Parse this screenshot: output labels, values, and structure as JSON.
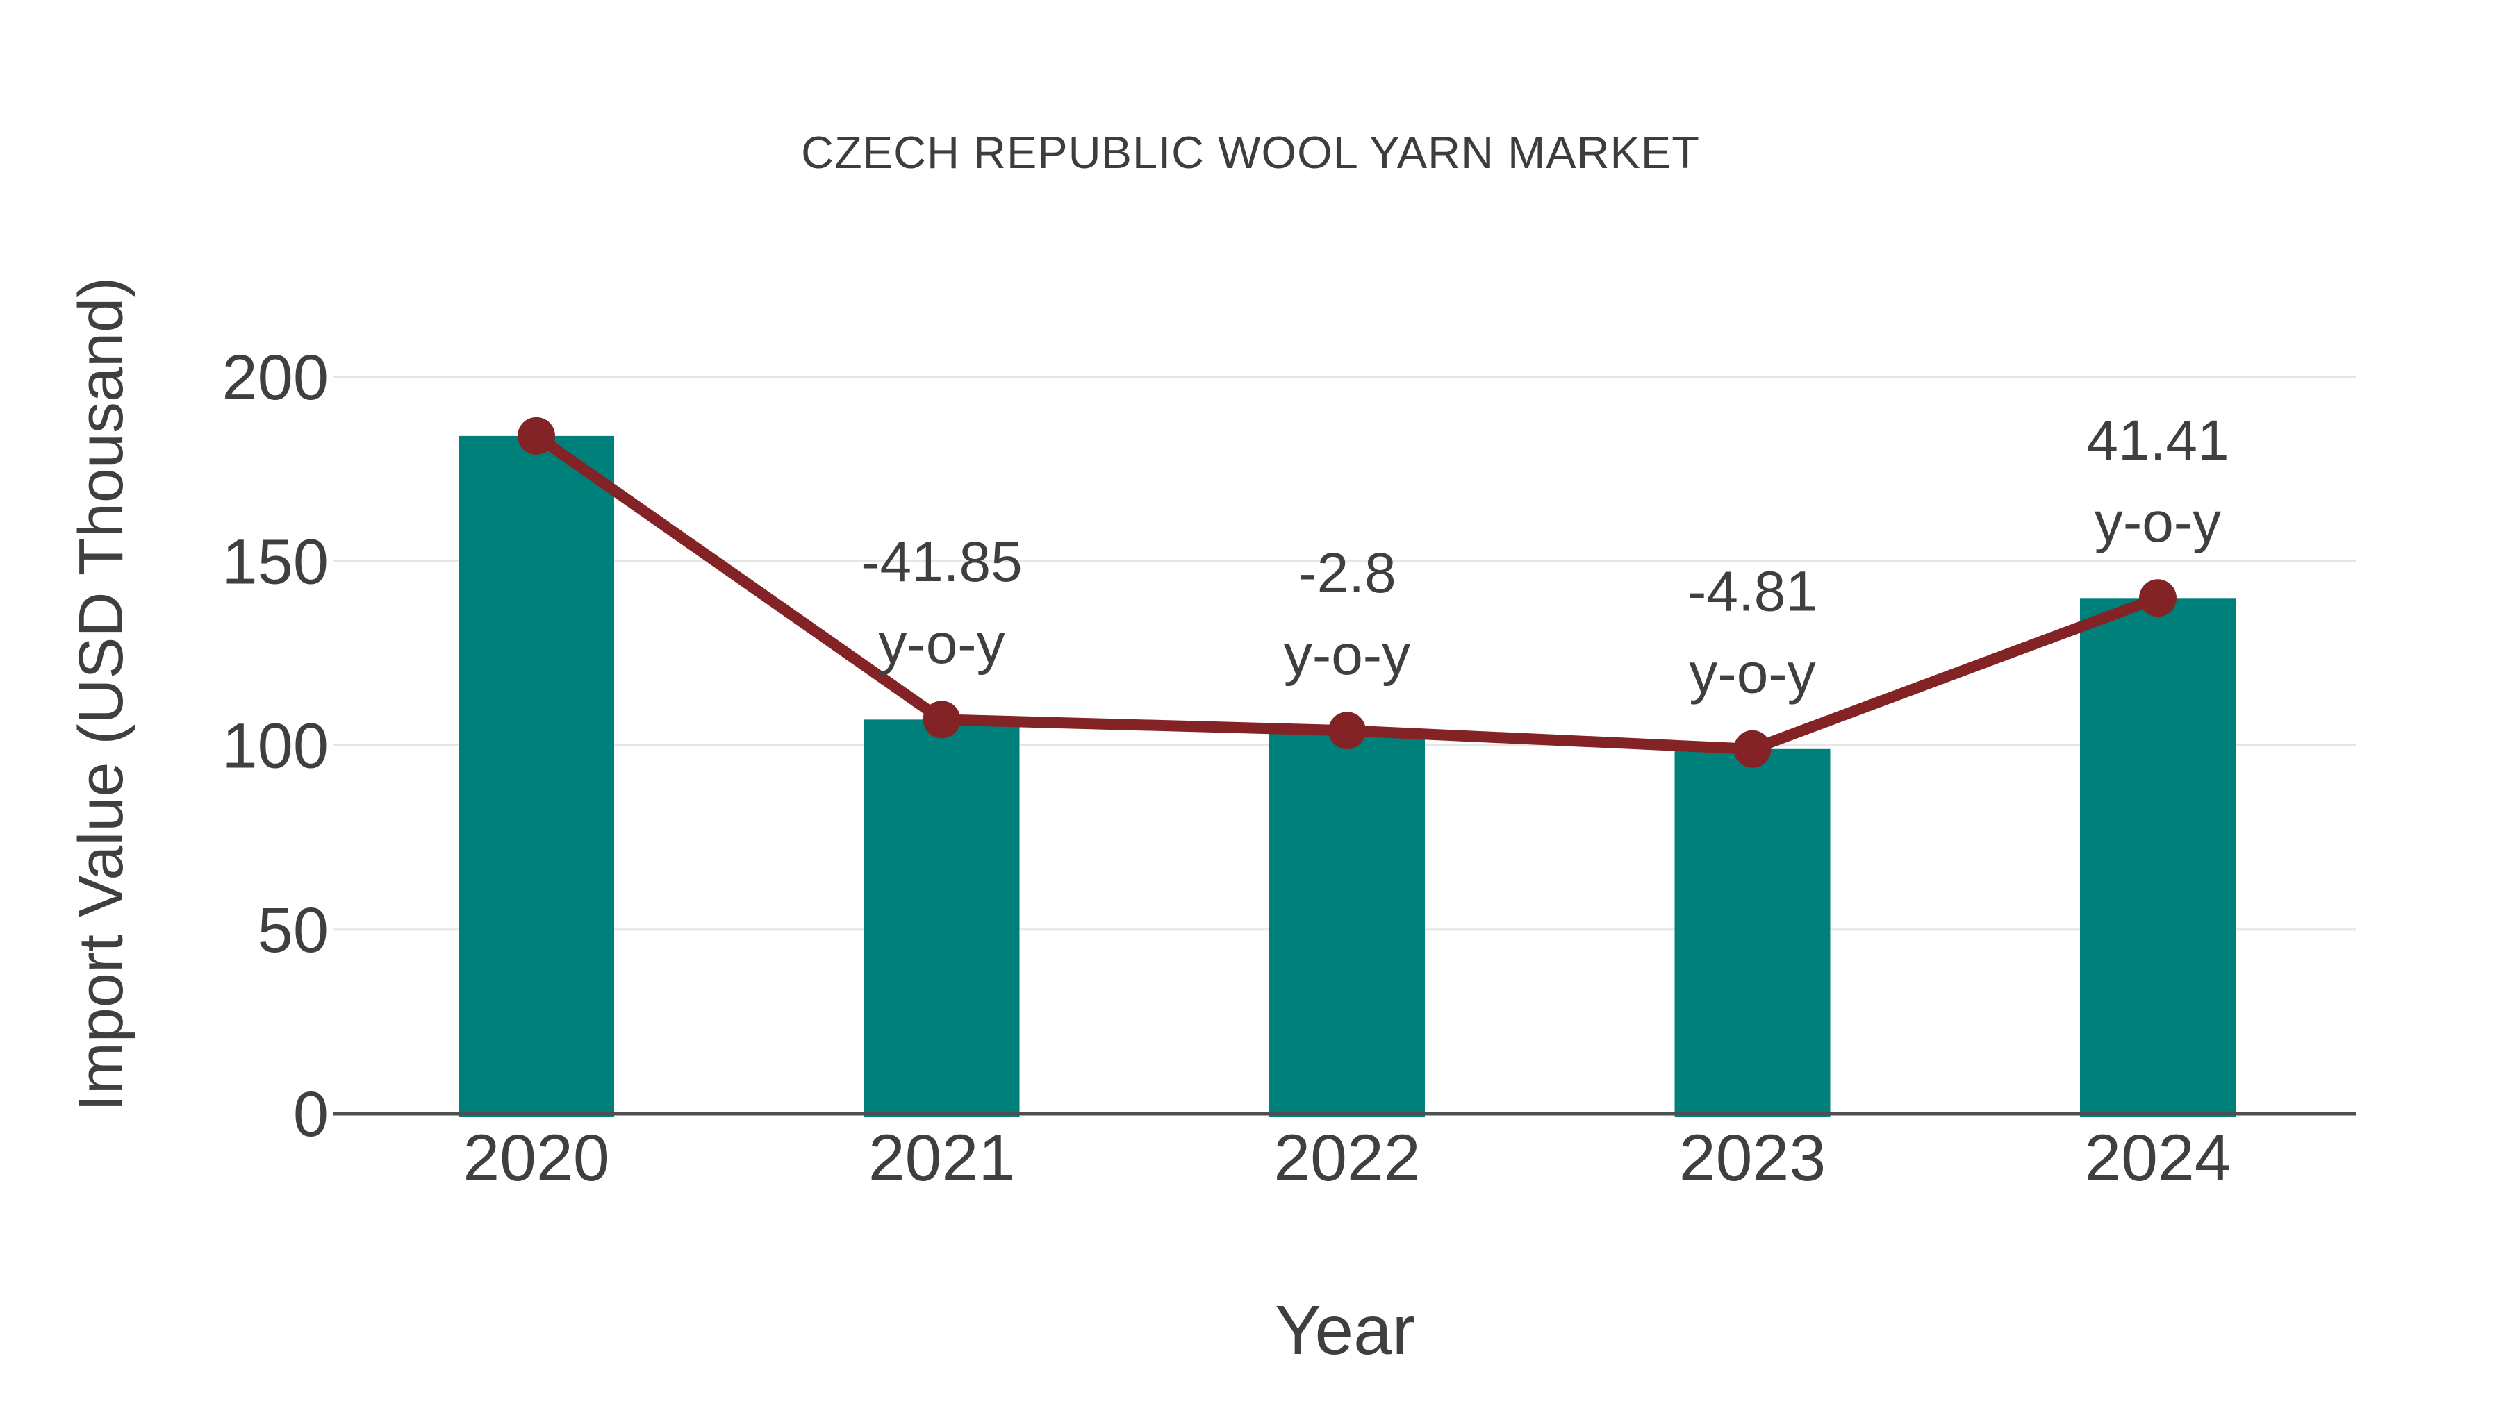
{
  "page": {
    "background": "#ffffff"
  },
  "chart_data": {
    "type": "bar",
    "combo": "bar+line",
    "title": "CZECH REPUBLIC WOOL YARN MARKET",
    "xlabel": "Year",
    "ylabel": "Import Value (USD Thousand)",
    "categories": [
      "2020",
      "2021",
      "2022",
      "2023",
      "2024"
    ],
    "series": [
      {
        "name": "Import Value bars",
        "type": "bar",
        "values": [
          184,
          107,
          104,
          99,
          140
        ],
        "color": "#00807B"
      },
      {
        "name": "Import Value trend line",
        "type": "line",
        "values": [
          184,
          107,
          104,
          99,
          140
        ],
        "color": "#832325"
      }
    ],
    "annotations": [
      {
        "category": "2021",
        "lines": [
          "-41.85",
          "y-o-y"
        ]
      },
      {
        "category": "2022",
        "lines": [
          "-2.8",
          "y-o-y"
        ]
      },
      {
        "category": "2023",
        "lines": [
          "-4.81",
          "y-o-y"
        ]
      },
      {
        "category": "2024",
        "lines": [
          "41.41",
          "y-o-y"
        ]
      }
    ],
    "ylim": [
      0,
      200
    ],
    "yticks": [
      0,
      50,
      100,
      150,
      200
    ],
    "grid": true,
    "legend": false,
    "colors": {
      "bar": "#00807B",
      "line": "#832325",
      "marker": "#832325",
      "gridline": "#E6E6E6",
      "axisline": "#4F4F4F",
      "text": "#3F3F3F"
    }
  }
}
